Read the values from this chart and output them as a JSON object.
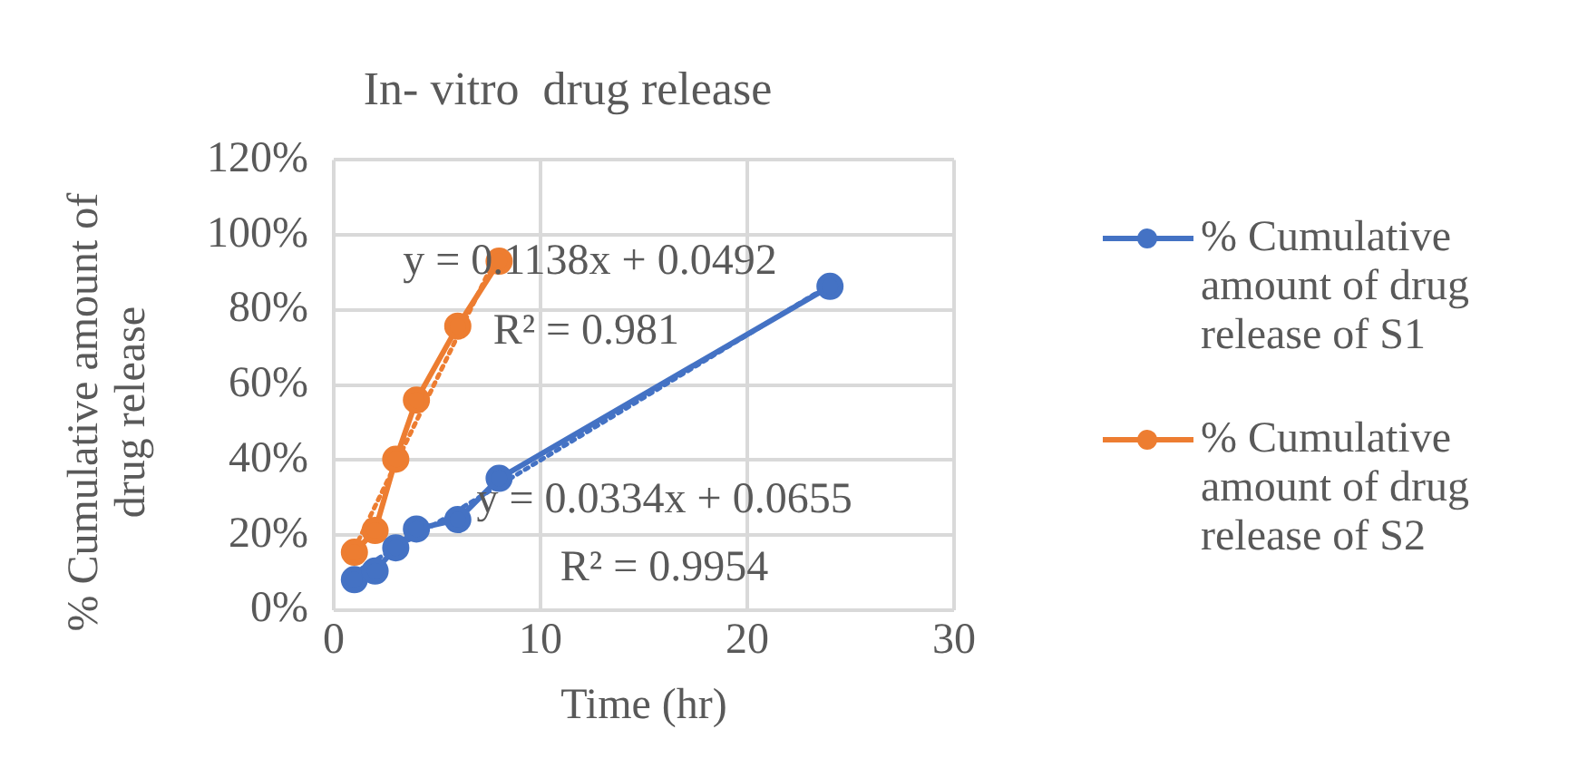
{
  "chart_data": {
    "type": "line",
    "title": "In- vitro  drug release",
    "xlabel": "Time (hr)",
    "ylabel": "% Cumulative amount of drug release",
    "series": [
      {
        "name": "% Cumulative amount of drug release of S1",
        "color": "#4472c4",
        "x": [
          1,
          2,
          3,
          4,
          6,
          8,
          24
        ],
        "values": [
          8.1,
          10.4,
          16.6,
          21.6,
          24.1,
          35.1,
          86.3
        ],
        "marker": "circle",
        "line_style": "solid"
      },
      {
        "name": "% Cumulative amount of drug release of S2",
        "color": "#ed7d31",
        "x": [
          1,
          2,
          3,
          4,
          6,
          8
        ],
        "values": [
          15.4,
          21.2,
          40.2,
          56.0,
          75.7,
          93.0
        ],
        "marker": "circle",
        "line_style": "solid"
      },
      {
        "color": "#4472c4",
        "x": [
          1,
          24
        ],
        "values": [
          9.9,
          86.7
        ],
        "marker": "none",
        "line_style": "dotted"
      },
      {
        "color": "#ed7d31",
        "x": [
          1,
          8
        ],
        "values": [
          16.3,
          95.9
        ],
        "marker": "none",
        "line_style": "dotted"
      }
    ],
    "xlim": [
      0,
      30
    ],
    "xticks": [
      0,
      10,
      20,
      30
    ],
    "ylim": [
      0,
      120
    ],
    "yticks": [
      {
        "value": 0,
        "label": "0%"
      },
      {
        "value": 20,
        "label": "20%"
      },
      {
        "value": 40,
        "label": "40%"
      },
      {
        "value": 60,
        "label": "60%"
      },
      {
        "value": 80,
        "label": "80%"
      },
      {
        "value": 100,
        "label": "100%"
      },
      {
        "value": 120,
        "label": "120%"
      }
    ],
    "annotations": [
      "y = 0.1138x + 0.0492",
      "R² = 0.981",
      "y = 0.0334x + 0.0655",
      "R² = 0.9954"
    ],
    "grid": true,
    "legend": "right"
  }
}
